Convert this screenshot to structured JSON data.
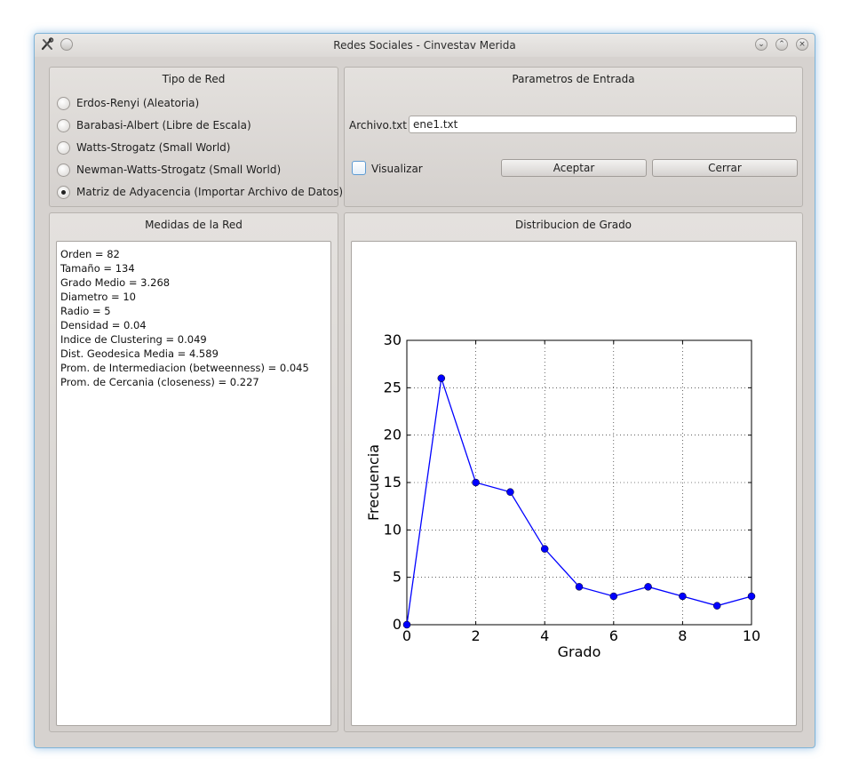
{
  "window": {
    "title": "Redes Sociales - Cinvestav Merida",
    "icons": {
      "app": "tools-icon",
      "menu": "window-menu-icon",
      "minimize": "minimize-icon",
      "maximize": "maximize-icon",
      "close": "close-icon"
    }
  },
  "network_type": {
    "title": "Tipo de Red",
    "options": [
      {
        "label": "Erdos-Renyi (Aleatoria)",
        "checked": false
      },
      {
        "label": "Barabasi-Albert (Libre de Escala)",
        "checked": false
      },
      {
        "label": "Watts-Strogatz (Small World)",
        "checked": false
      },
      {
        "label": "Newman-Watts-Strogatz (Small World)",
        "checked": false
      },
      {
        "label": "Matriz de Adyacencia (Importar Archivo de Datos)",
        "checked": true
      }
    ]
  },
  "input_params": {
    "title": "Parametros de Entrada",
    "file_label": "Archivo.txt",
    "file_value": "ene1.txt",
    "visualize_label": "Visualizar",
    "visualize_checked": false,
    "accept_label": "Aceptar",
    "close_label": "Cerrar"
  },
  "measures": {
    "title": "Medidas de la Red",
    "lines": [
      "Orden = 82",
      "Tamaño = 134",
      "Grado Medio = 3.268",
      "Diametro = 10",
      "Radio = 5",
      "Densidad = 0.04",
      "Indice de Clustering = 0.049",
      "Dist. Geodesica Media = 4.589",
      "Prom. de Intermediacion (betweenness) = 0.045",
      "Prom. de Cercania (closeness) = 0.227"
    ]
  },
  "distribution": {
    "title": "Distribucion de Grado"
  },
  "chart_data": {
    "type": "line",
    "x": [
      0,
      1,
      2,
      3,
      4,
      5,
      6,
      7,
      8,
      9,
      10
    ],
    "series": [
      {
        "values": [
          0,
          26,
          15,
          14,
          8,
          4,
          3,
          4,
          3,
          2,
          3
        ],
        "color": "#0000ff"
      }
    ],
    "xlabel": "Grado",
    "ylabel": "Frecuencia",
    "xlim": [
      0,
      10
    ],
    "ylim": [
      0,
      30
    ],
    "xticks": [
      "0",
      "2",
      "4",
      "6",
      "8",
      "10"
    ],
    "yticks": [
      "0",
      "5",
      "10",
      "15",
      "20",
      "25",
      "30"
    ],
    "grid": true
  }
}
